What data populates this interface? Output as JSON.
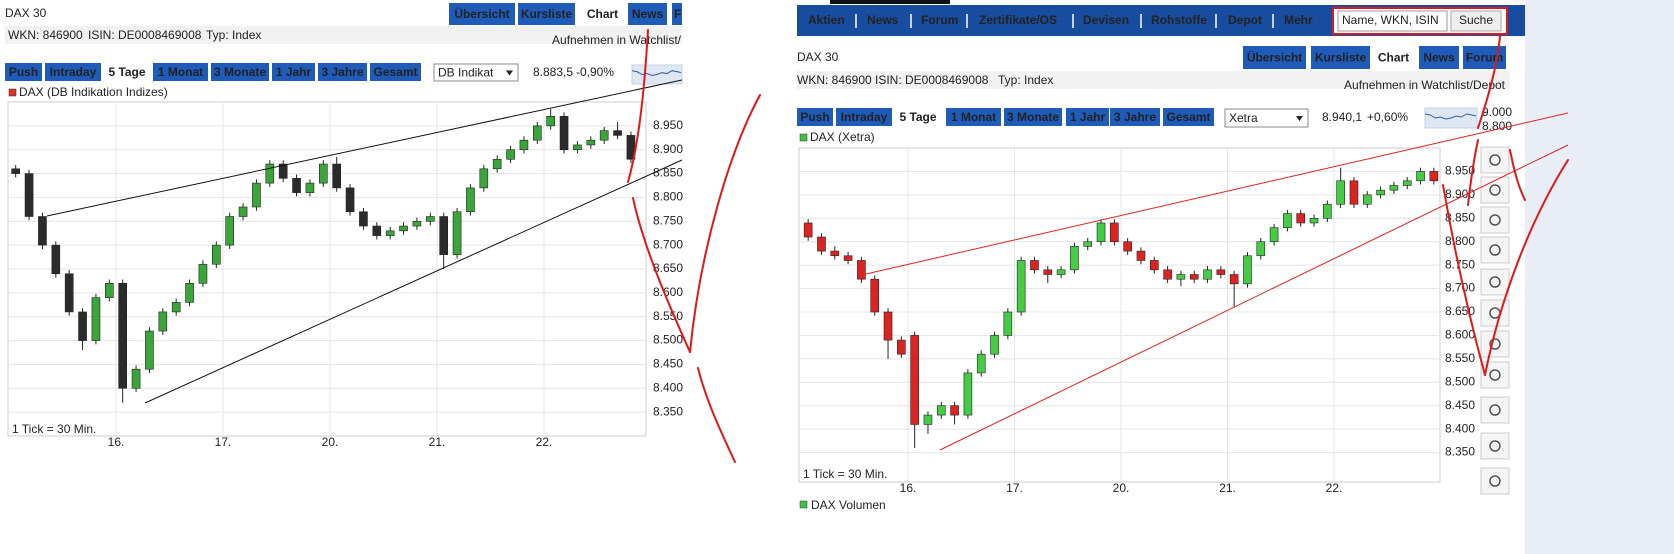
{
  "nav": {
    "items": [
      "Aktien",
      "News",
      "Forum",
      "Zertifikate/OS",
      "Devisen",
      "Rohstoffe",
      "Depot",
      "Mehr"
    ],
    "search": "Name, WKN, ISIN",
    "search_button": "Suche"
  },
  "panels": [
    {
      "title": "DAX 30",
      "tabs": [
        "Übersicht",
        "Kursliste",
        "Chart",
        "News",
        "F"
      ],
      "wkn": "WKN: 846900",
      "isin": "ISIN: DE0008469008",
      "typ": "Typ: Index",
      "watchlist": "Aufnehmen in Watchlist/",
      "periods": [
        "Push",
        "Intraday",
        "5 Tage",
        "1 Monat",
        "3 Monate",
        "1 Jahr",
        "3 Jahre",
        "Gesamt"
      ],
      "exchange": "DB Indikat",
      "price": "8.883,5",
      "change": "-0,90%",
      "change_color": "#e0302a"
    },
    {
      "title": "DAX 30",
      "tabs": [
        "Übersicht",
        "Kursliste",
        "Chart",
        "News",
        "Forum"
      ],
      "wkn": "WKN: 846900",
      "isin": "ISIN: DE0008469008",
      "typ": "Typ: Index",
      "watchlist": "Aufnehmen in Watchlist/Depot",
      "periods": [
        "Push",
        "Intraday",
        "5 Tage",
        "1 Monat",
        "3 Monate",
        "1 Jahr",
        "3 Jahre",
        "Gesamt"
      ],
      "exchange": "Xetra",
      "price": "8.940,1",
      "change": "+0,60%",
      "change_color": "#2a9a2a",
      "mini_labels": [
        "9.000",
        "8.800"
      ],
      "volume_legend": "DAX Volumen"
    }
  ],
  "chart_data": [
    {
      "type": "candlestick",
      "legend": "DAX (DB Indikation Indizes)",
      "legend_color": "#e0302a",
      "note": "1 Tick = 30 Min.",
      "categories": [
        null,
        "16.",
        "17.",
        "20.",
        "21.",
        "22."
      ],
      "candles": [
        [
          [
            8860,
            8868,
            8842,
            8850
          ],
          [
            8850,
            8858,
            8752,
            8760
          ],
          [
            8760,
            8768,
            8692,
            8700
          ],
          [
            8700,
            8708,
            8632,
            8640
          ],
          [
            8640,
            8648,
            8552,
            8560
          ],
          [
            8560,
            8568,
            8480,
            8500
          ],
          [
            8500,
            8598,
            8492,
            8590
          ],
          [
            8590,
            8628,
            8582,
            8620
          ]
        ],
        [
          [
            8620,
            8628,
            8370,
            8400
          ],
          [
            8400,
            8448,
            8392,
            8440
          ],
          [
            8440,
            8528,
            8432,
            8520
          ],
          [
            8520,
            8568,
            8512,
            8560
          ],
          [
            8560,
            8588,
            8552,
            8580
          ],
          [
            8580,
            8628,
            8572,
            8620
          ],
          [
            8620,
            8668,
            8612,
            8660
          ],
          [
            8660,
            8708,
            8652,
            8700
          ]
        ],
        [
          [
            8700,
            8768,
            8692,
            8760
          ],
          [
            8760,
            8788,
            8752,
            8780
          ],
          [
            8780,
            8838,
            8772,
            8830
          ],
          [
            8830,
            8878,
            8822,
            8870
          ],
          [
            8870,
            8878,
            8832,
            8840
          ],
          [
            8840,
            8848,
            8802,
            8810
          ],
          [
            8810,
            8838,
            8802,
            8830
          ],
          [
            8830,
            8878,
            8822,
            8870
          ]
        ],
        [
          [
            8870,
            8885,
            8812,
            8820
          ],
          [
            8820,
            8828,
            8762,
            8770
          ],
          [
            8770,
            8778,
            8732,
            8740
          ],
          [
            8740,
            8748,
            8712,
            8720
          ],
          [
            8720,
            8738,
            8712,
            8730
          ],
          [
            8730,
            8748,
            8722,
            8740
          ],
          [
            8740,
            8758,
            8732,
            8750
          ],
          [
            8750,
            8768,
            8742,
            8760
          ]
        ],
        [
          [
            8760,
            8768,
            8650,
            8680
          ],
          [
            8680,
            8778,
            8672,
            8770
          ],
          [
            8770,
            8828,
            8762,
            8820
          ],
          [
            8820,
            8868,
            8812,
            8860
          ],
          [
            8860,
            8888,
            8852,
            8880
          ],
          [
            8880,
            8908,
            8872,
            8900
          ],
          [
            8900,
            8928,
            8892,
            8920
          ],
          [
            8920,
            8958,
            8912,
            8950
          ]
        ],
        [
          [
            8950,
            8985,
            8942,
            8970
          ],
          [
            8970,
            8978,
            8892,
            8900
          ],
          [
            8900,
            8918,
            8892,
            8910
          ],
          [
            8910,
            8928,
            8902,
            8920
          ],
          [
            8920,
            8948,
            8912,
            8940
          ],
          [
            8940,
            8958,
            8922,
            8930
          ],
          [
            8930,
            8938,
            8872,
            8880
          ]
        ]
      ],
      "up_color": "#3aa63a",
      "down_color": "#2b2b2b",
      "ylim": [
        8300,
        9000
      ],
      "yticks": [
        {
          "value": 8350,
          "label": "8.350"
        },
        {
          "value": 8400,
          "label": "8.400"
        },
        {
          "value": 8450,
          "label": "8.450"
        },
        {
          "value": 8500,
          "label": "8.500"
        },
        {
          "value": 8550,
          "label": "8.550"
        },
        {
          "value": 8600,
          "label": "8.600"
        },
        {
          "value": 8650,
          "label": "8.650"
        },
        {
          "value": 8700,
          "label": "8.700"
        },
        {
          "value": 8750,
          "label": "8.750"
        },
        {
          "value": 8800,
          "label": "8.800"
        },
        {
          "value": 8850,
          "label": "8.850"
        },
        {
          "value": 8900,
          "label": "8.900"
        },
        {
          "value": 8950,
          "label": "8.950"
        }
      ],
      "grid": true
    },
    {
      "type": "candlestick",
      "legend": "DAX (Xetra)",
      "legend_color": "#3cc23c",
      "note": "1 Tick = 30 Min.",
      "categories": [
        null,
        "16.",
        "17.",
        "20.",
        "21.",
        "22."
      ],
      "candles": [
        [
          [
            8840,
            8848,
            8802,
            8810
          ],
          [
            8810,
            8818,
            8772,
            8780
          ],
          [
            8780,
            8790,
            8762,
            8770
          ],
          [
            8770,
            8778,
            8752,
            8760
          ],
          [
            8760,
            8768,
            8712,
            8720
          ],
          [
            8720,
            8728,
            8642,
            8650
          ],
          [
            8650,
            8658,
            8550,
            8590
          ],
          [
            8590,
            8598,
            8552,
            8560
          ]
        ],
        [
          [
            8600,
            8608,
            8360,
            8410
          ],
          [
            8410,
            8438,
            8390,
            8430
          ],
          [
            8430,
            8458,
            8422,
            8450
          ],
          [
            8450,
            8458,
            8410,
            8430
          ],
          [
            8430,
            8528,
            8422,
            8520
          ],
          [
            8520,
            8568,
            8512,
            8560
          ],
          [
            8560,
            8608,
            8552,
            8600
          ],
          [
            8600,
            8658,
            8592,
            8650
          ]
        ],
        [
          [
            8650,
            8768,
            8642,
            8760
          ],
          [
            8760,
            8768,
            8732,
            8740
          ],
          [
            8740,
            8748,
            8712,
            8730
          ],
          [
            8730,
            8748,
            8722,
            8740
          ],
          [
            8740,
            8798,
            8732,
            8790
          ],
          [
            8790,
            8808,
            8782,
            8800
          ],
          [
            8800,
            8848,
            8792,
            8840
          ],
          [
            8840,
            8848,
            8792,
            8800
          ]
        ],
        [
          [
            8800,
            8808,
            8772,
            8780
          ],
          [
            8780,
            8788,
            8752,
            8760
          ],
          [
            8760,
            8768,
            8732,
            8740
          ],
          [
            8740,
            8748,
            8712,
            8720
          ],
          [
            8720,
            8738,
            8705,
            8730
          ],
          [
            8730,
            8738,
            8712,
            8720
          ],
          [
            8720,
            8748,
            8712,
            8740
          ],
          [
            8740,
            8748,
            8722,
            8730
          ]
        ],
        [
          [
            8730,
            8738,
            8660,
            8710
          ],
          [
            8710,
            8778,
            8702,
            8770
          ],
          [
            8770,
            8808,
            8762,
            8800
          ],
          [
            8800,
            8838,
            8792,
            8830
          ],
          [
            8830,
            8868,
            8822,
            8860
          ],
          [
            8860,
            8868,
            8832,
            8840
          ],
          [
            8840,
            8858,
            8832,
            8850
          ],
          [
            8850,
            8888,
            8842,
            8880
          ]
        ],
        [
          [
            8880,
            8958,
            8872,
            8930
          ],
          [
            8930,
            8938,
            8872,
            8880
          ],
          [
            8880,
            8908,
            8872,
            8900
          ],
          [
            8900,
            8918,
            8892,
            8910
          ],
          [
            8910,
            8928,
            8902,
            8920
          ],
          [
            8920,
            8938,
            8912,
            8930
          ],
          [
            8930,
            8958,
            8922,
            8950
          ],
          [
            8950,
            8958,
            8922,
            8930
          ]
        ]
      ],
      "up_color": "#44cc44",
      "down_color": "#dd2222",
      "ylim": [
        8300,
        9000
      ],
      "yticks": [
        {
          "value": 8350,
          "label": "8.350"
        },
        {
          "value": 8400,
          "label": "8.400"
        },
        {
          "value": 8450,
          "label": "8.450"
        },
        {
          "value": 8500,
          "label": "8.500"
        },
        {
          "value": 8550,
          "label": "8.550"
        },
        {
          "value": 8600,
          "label": "8.600"
        },
        {
          "value": 8650,
          "label": "8.650"
        },
        {
          "value": 8700,
          "label": "8.700"
        },
        {
          "value": 8750,
          "label": "8.750"
        },
        {
          "value": 8800,
          "label": "8.800"
        },
        {
          "value": 8850,
          "label": "8.850"
        },
        {
          "value": 8900,
          "label": "8.900"
        },
        {
          "value": 8950,
          "label": "8.950"
        }
      ],
      "grid": true
    }
  ]
}
